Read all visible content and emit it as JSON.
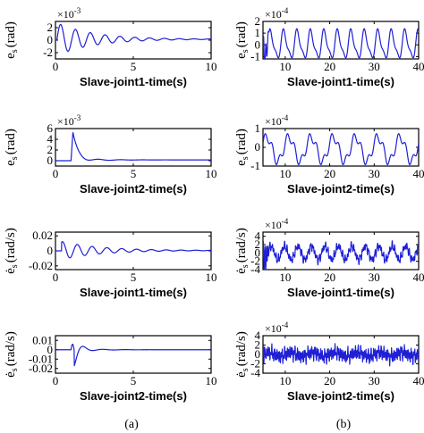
{
  "figure": {
    "panel_labels": [
      "(a)",
      "(b)"
    ],
    "line_color": "#1f1fd6"
  },
  "chart_data": [
    {
      "type": "line",
      "col": 0,
      "row": 0,
      "ylabel": "e",
      "ylabel_sub": "s",
      "ylabel_unit": "(rad)",
      "xlabel": "Slave-joint1-time(s)",
      "exponent_base": "×10",
      "exponent": "-3",
      "xlim": [
        0,
        10
      ],
      "ylim": [
        -3,
        3
      ],
      "xticks": [
        0,
        5,
        10
      ],
      "xtick_labels": [
        "0",
        "5",
        "10"
      ],
      "yticks": [
        -2,
        0,
        2
      ],
      "ytick_labels": [
        "-2",
        "0",
        "2"
      ],
      "signal": {
        "kind": "decay",
        "start": 0.1,
        "amp": 2.6,
        "freq": 1.05,
        "decay": 0.42,
        "floor": 0.15,
        "phase": 0
      }
    },
    {
      "type": "line",
      "col": 0,
      "row": 1,
      "ylabel": "e",
      "ylabel_sub": "s",
      "ylabel_unit": "(rad)",
      "xlabel": "Slave-joint2-time(s)",
      "exponent_base": "×10",
      "exponent": "-3",
      "xlim": [
        0,
        10
      ],
      "ylim": [
        -1,
        6
      ],
      "xticks": [
        0,
        5,
        10
      ],
      "xtick_labels": [
        "0",
        "5",
        "10"
      ],
      "yticks": [
        0,
        2,
        4,
        6
      ],
      "ytick_labels": [
        "0",
        "2",
        "4",
        "6"
      ],
      "signal": {
        "kind": "spike",
        "start": 1.0,
        "amp": 5.3,
        "freq": 0.7,
        "decay": 0.75,
        "floor": 0.0,
        "phase": 0
      }
    },
    {
      "type": "line",
      "col": 0,
      "row": 2,
      "ylabel": "ė",
      "ylabel_sub": "s",
      "ylabel_unit": "(rad/s)",
      "xlabel": "Slave-joint1-time(s)",
      "exponent_base": "",
      "exponent": "",
      "xlim": [
        0,
        10
      ],
      "ylim": [
        -0.025,
        0.025
      ],
      "xticks": [
        0,
        5,
        10
      ],
      "xtick_labels": [
        "0",
        "5",
        "10"
      ],
      "yticks": [
        -0.02,
        0,
        0.02
      ],
      "ytick_labels": [
        "-0.02",
        "0",
        "0.02"
      ],
      "signal": {
        "kind": "decay",
        "start": 0.4,
        "amp": 0.012,
        "freq": 1.05,
        "decay": 0.4,
        "floor": 0.0005,
        "phase": 1.2
      }
    },
    {
      "type": "line",
      "col": 0,
      "row": 3,
      "ylabel": "ė",
      "ylabel_sub": "s",
      "ylabel_unit": "(rad/s)",
      "xlabel": "Slave-joint2-time(s)",
      "exponent_base": "",
      "exponent": "",
      "xlim": [
        0,
        10
      ],
      "ylim": [
        -0.025,
        0.015
      ],
      "xticks": [
        0,
        5,
        10
      ],
      "xtick_labels": [
        "0",
        "5",
        "10"
      ],
      "yticks": [
        -0.02,
        -0.01,
        0,
        0.01
      ],
      "ytick_labels": [
        "-0.02",
        "-0.01",
        "0",
        "0.01"
      ],
      "signal": {
        "kind": "dip",
        "start": 1.0,
        "amp": 0.019,
        "freq": 0.7,
        "decay": 0.8,
        "floor": 0.0,
        "phase": 0
      }
    },
    {
      "type": "line",
      "col": 1,
      "row": 0,
      "ylabel": "e",
      "ylabel_sub": "s",
      "ylabel_unit": "(rad)",
      "xlabel": "Slave-joint1-time(s)",
      "exponent_base": "×10",
      "exponent": "-4",
      "xlim": [
        5,
        40
      ],
      "ylim": [
        -1.2,
        2
      ],
      "xticks": [
        10,
        20,
        30,
        40
      ],
      "xtick_labels": [
        "10",
        "20",
        "30",
        "40"
      ],
      "yticks": [
        -1,
        0,
        1,
        2
      ],
      "ytick_labels": [
        "-1",
        "0",
        "1",
        "2"
      ],
      "signal": {
        "kind": "periodic",
        "start": 5,
        "amp": 1.1,
        "freq": 0.33,
        "decay": 0,
        "floor": 0,
        "phase": 0.3,
        "burst": 1.8
      }
    },
    {
      "type": "line",
      "col": 1,
      "row": 1,
      "ylabel": "e",
      "ylabel_sub": "s",
      "ylabel_unit": "(rad)",
      "xlabel": "Slave-joint2-time(s)",
      "exponent_base": "×10",
      "exponent": "-4",
      "xlim": [
        5,
        40
      ],
      "ylim": [
        -1,
        1
      ],
      "xticks": [
        10,
        20,
        30,
        40
      ],
      "xtick_labels": [
        "10",
        "20",
        "30",
        "40"
      ],
      "yticks": [
        -1,
        0,
        1
      ],
      "ytick_labels": [
        "-1",
        "0",
        "1"
      ],
      "signal": {
        "kind": "periodic2",
        "start": 5,
        "amp": 0.65,
        "freq": 0.2,
        "decay": 0,
        "floor": 0,
        "phase": 0.5
      }
    },
    {
      "type": "line",
      "col": 1,
      "row": 2,
      "ylabel": "ė",
      "ylabel_sub": "s",
      "ylabel_unit": "(rad/s)",
      "xlabel": "Slave-joint1-time(s)",
      "exponent_base": "×10",
      "exponent": "-4",
      "xlim": [
        5,
        40
      ],
      "ylim": [
        -4,
        5
      ],
      "xticks": [
        10,
        20,
        30,
        40
      ],
      "xtick_labels": [
        "10",
        "20",
        "30",
        "40"
      ],
      "yticks": [
        -4,
        -2,
        0,
        2,
        4
      ],
      "ytick_labels": [
        "-4",
        "-2",
        "0",
        "2",
        "4"
      ],
      "signal": {
        "kind": "noisy",
        "start": 5,
        "amp": 1.6,
        "freq": 0.33,
        "decay": 0,
        "floor": 0,
        "phase": 0,
        "burst": 4.5
      }
    },
    {
      "type": "line",
      "col": 1,
      "row": 3,
      "ylabel": "ė",
      "ylabel_sub": "s",
      "ylabel_unit": "(rad/s)",
      "xlabel": "Slave-joint2-time(s)",
      "exponent_base": "×10",
      "exponent": "-4",
      "xlim": [
        5,
        40
      ],
      "ylim": [
        -4,
        4
      ],
      "xticks": [
        10,
        20,
        30,
        40
      ],
      "xtick_labels": [
        "10",
        "20",
        "30",
        "40"
      ],
      "yticks": [
        -4,
        -2,
        0,
        2,
        4
      ],
      "ytick_labels": [
        "-4",
        "-2",
        "0",
        "2",
        "4"
      ],
      "signal": {
        "kind": "noise",
        "start": 5,
        "amp": 1.3,
        "freq": 0.2,
        "decay": 0,
        "floor": 0,
        "phase": 0,
        "burst": 3.2
      }
    }
  ]
}
